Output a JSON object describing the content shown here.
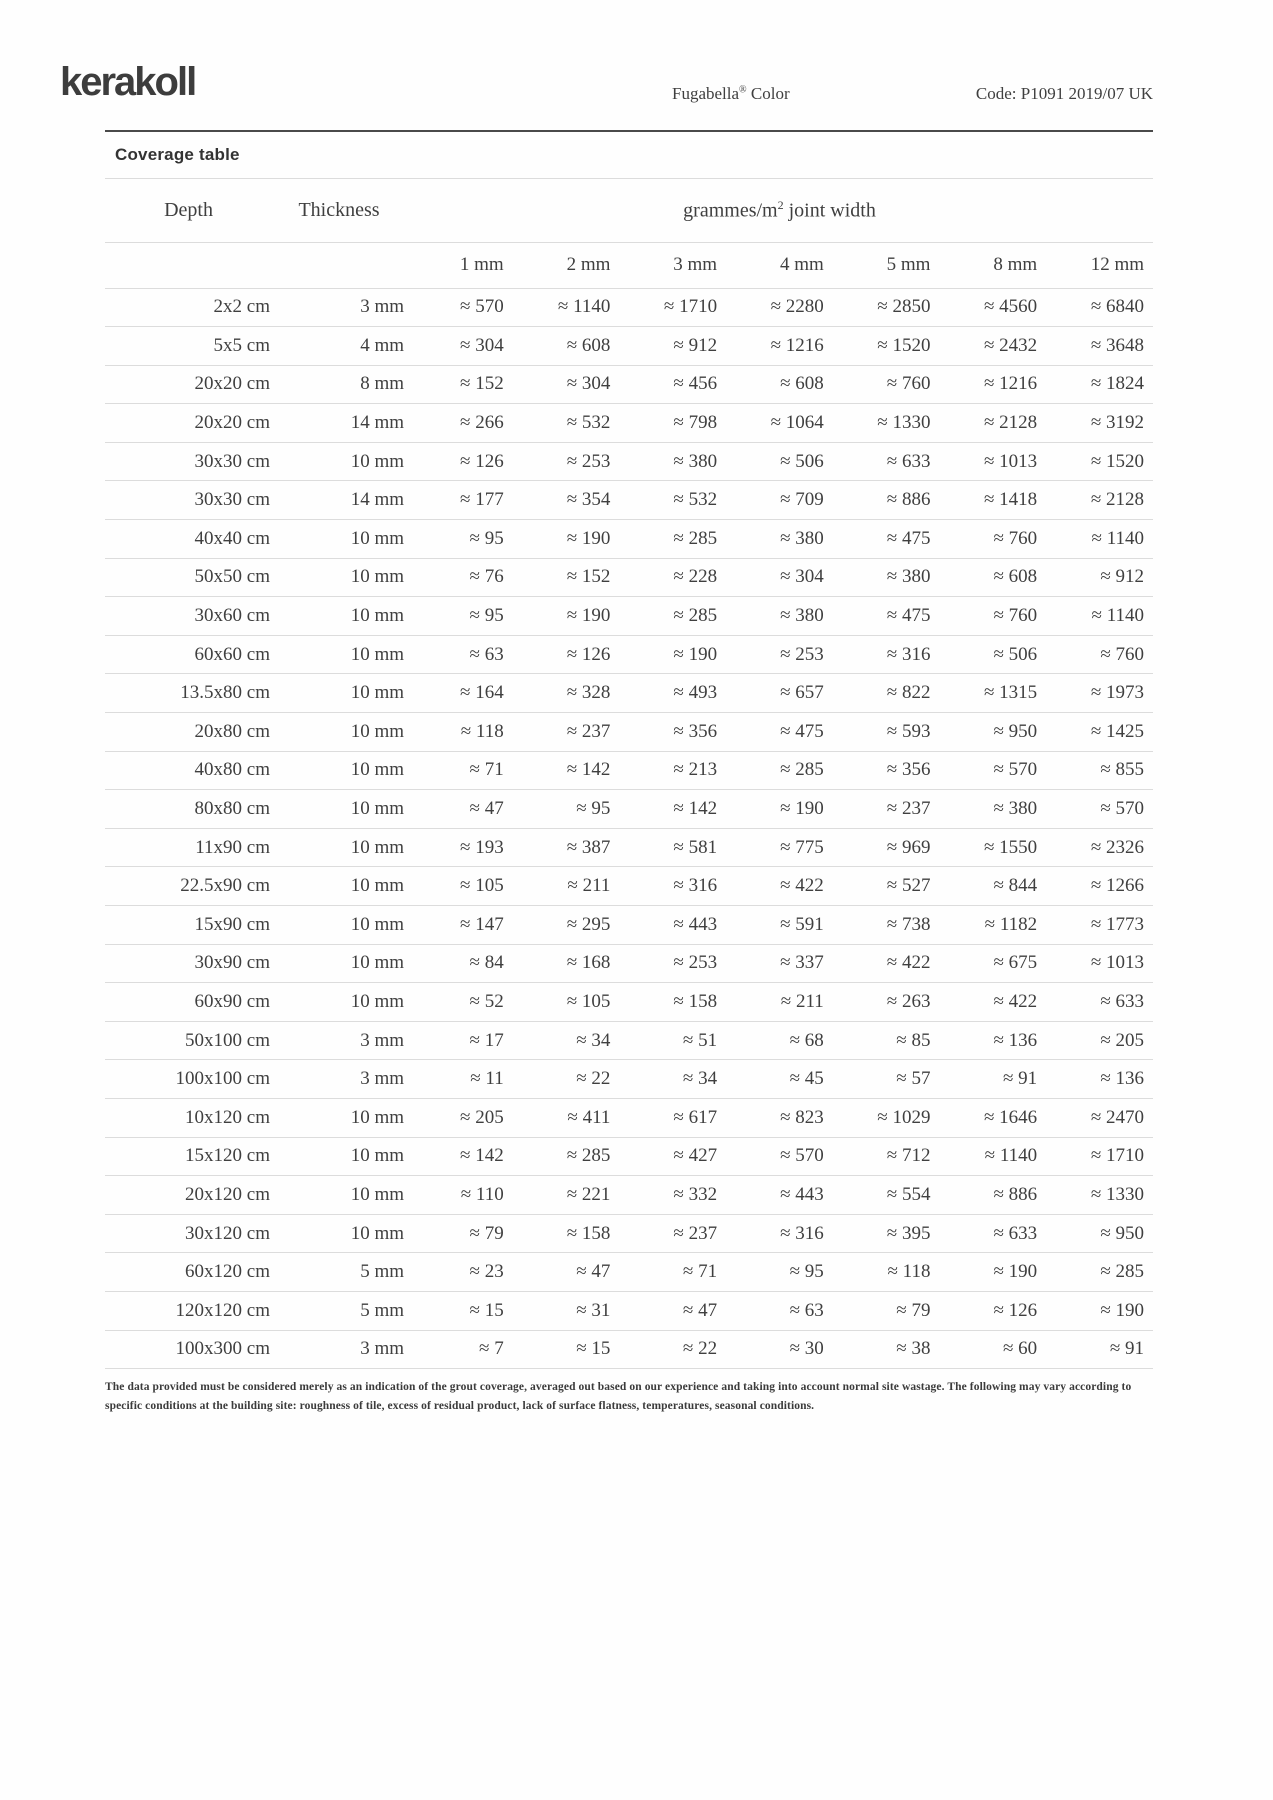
{
  "page": {
    "background_color": "#fefefe",
    "text_color": "#3f3f3f",
    "rule_dark_color": "#4a4a4a",
    "rule_light_color": "#dcdcdc"
  },
  "header": {
    "logo": "kerakoll",
    "product_name": "Fugabella",
    "product_reg": "®",
    "product_rest": " Color",
    "code": "Code: P1091 2019/07 UK"
  },
  "table": {
    "title": "Coverage table",
    "depth_header": "Depth",
    "thickness_header": "Thickness",
    "group_header_main": "grammes/m",
    "group_header_sup": "2",
    "group_header_rest": " joint width",
    "approx_symbol": "≈",
    "joint_widths": [
      "1 mm",
      "2 mm",
      "3 mm",
      "4 mm",
      "5 mm",
      "8 mm",
      "12 mm"
    ],
    "rows": [
      {
        "depth": "2x2 cm",
        "thickness": "3 mm",
        "values": [
          570,
          1140,
          1710,
          2280,
          2850,
          4560,
          6840
        ]
      },
      {
        "depth": "5x5 cm",
        "thickness": "4 mm",
        "values": [
          304,
          608,
          912,
          1216,
          1520,
          2432,
          3648
        ]
      },
      {
        "depth": "20x20 cm",
        "thickness": "8 mm",
        "values": [
          152,
          304,
          456,
          608,
          760,
          1216,
          1824
        ]
      },
      {
        "depth": "20x20 cm",
        "thickness": "14 mm",
        "values": [
          266,
          532,
          798,
          1064,
          1330,
          2128,
          3192
        ]
      },
      {
        "depth": "30x30 cm",
        "thickness": "10 mm",
        "values": [
          126,
          253,
          380,
          506,
          633,
          1013,
          1520
        ]
      },
      {
        "depth": "30x30 cm",
        "thickness": "14 mm",
        "values": [
          177,
          354,
          532,
          709,
          886,
          1418,
          2128
        ]
      },
      {
        "depth": "40x40 cm",
        "thickness": "10 mm",
        "values": [
          95,
          190,
          285,
          380,
          475,
          760,
          1140
        ]
      },
      {
        "depth": "50x50 cm",
        "thickness": "10 mm",
        "values": [
          76,
          152,
          228,
          304,
          380,
          608,
          912
        ]
      },
      {
        "depth": "30x60 cm",
        "thickness": "10 mm",
        "values": [
          95,
          190,
          285,
          380,
          475,
          760,
          1140
        ]
      },
      {
        "depth": "60x60 cm",
        "thickness": "10 mm",
        "values": [
          63,
          126,
          190,
          253,
          316,
          506,
          760
        ]
      },
      {
        "depth": "13.5x80 cm",
        "thickness": "10 mm",
        "values": [
          164,
          328,
          493,
          657,
          822,
          1315,
          1973
        ]
      },
      {
        "depth": "20x80 cm",
        "thickness": "10 mm",
        "values": [
          118,
          237,
          356,
          475,
          593,
          950,
          1425
        ]
      },
      {
        "depth": "40x80 cm",
        "thickness": "10 mm",
        "values": [
          71,
          142,
          213,
          285,
          356,
          570,
          855
        ]
      },
      {
        "depth": "80x80 cm",
        "thickness": "10 mm",
        "values": [
          47,
          95,
          142,
          190,
          237,
          380,
          570
        ]
      },
      {
        "depth": "11x90 cm",
        "thickness": "10 mm",
        "values": [
          193,
          387,
          581,
          775,
          969,
          1550,
          2326
        ]
      },
      {
        "depth": "22.5x90 cm",
        "thickness": "10 mm",
        "values": [
          105,
          211,
          316,
          422,
          527,
          844,
          1266
        ]
      },
      {
        "depth": "15x90 cm",
        "thickness": "10 mm",
        "values": [
          147,
          295,
          443,
          591,
          738,
          1182,
          1773
        ]
      },
      {
        "depth": "30x90 cm",
        "thickness": "10 mm",
        "values": [
          84,
          168,
          253,
          337,
          422,
          675,
          1013
        ]
      },
      {
        "depth": "60x90 cm",
        "thickness": "10 mm",
        "values": [
          52,
          105,
          158,
          211,
          263,
          422,
          633
        ]
      },
      {
        "depth": "50x100 cm",
        "thickness": "3 mm",
        "values": [
          17,
          34,
          51,
          68,
          85,
          136,
          205
        ]
      },
      {
        "depth": "100x100 cm",
        "thickness": "3 mm",
        "values": [
          11,
          22,
          34,
          45,
          57,
          91,
          136
        ]
      },
      {
        "depth": "10x120 cm",
        "thickness": "10 mm",
        "values": [
          205,
          411,
          617,
          823,
          1029,
          1646,
          2470
        ]
      },
      {
        "depth": "15x120 cm",
        "thickness": "10 mm",
        "values": [
          142,
          285,
          427,
          570,
          712,
          1140,
          1710
        ]
      },
      {
        "depth": "20x120 cm",
        "thickness": "10 mm",
        "values": [
          110,
          221,
          332,
          443,
          554,
          886,
          1330
        ]
      },
      {
        "depth": "30x120 cm",
        "thickness": "10 mm",
        "values": [
          79,
          158,
          237,
          316,
          395,
          633,
          950
        ]
      },
      {
        "depth": "60x120 cm",
        "thickness": "5 mm",
        "values": [
          23,
          47,
          71,
          95,
          118,
          190,
          285
        ]
      },
      {
        "depth": "120x120 cm",
        "thickness": "5 mm",
        "values": [
          15,
          31,
          47,
          63,
          79,
          126,
          190
        ]
      },
      {
        "depth": "100x300 cm",
        "thickness": "3 mm",
        "values": [
          7,
          15,
          22,
          30,
          38,
          60,
          91
        ]
      }
    ]
  },
  "footnote": "The data provided must be considered merely as an indication of the grout coverage, averaged out based on our experience and taking into account normal site wastage. The following may vary according to specific conditions at the building site: roughness of tile, excess of residual product, lack of surface flatness, temperatures, seasonal conditions."
}
